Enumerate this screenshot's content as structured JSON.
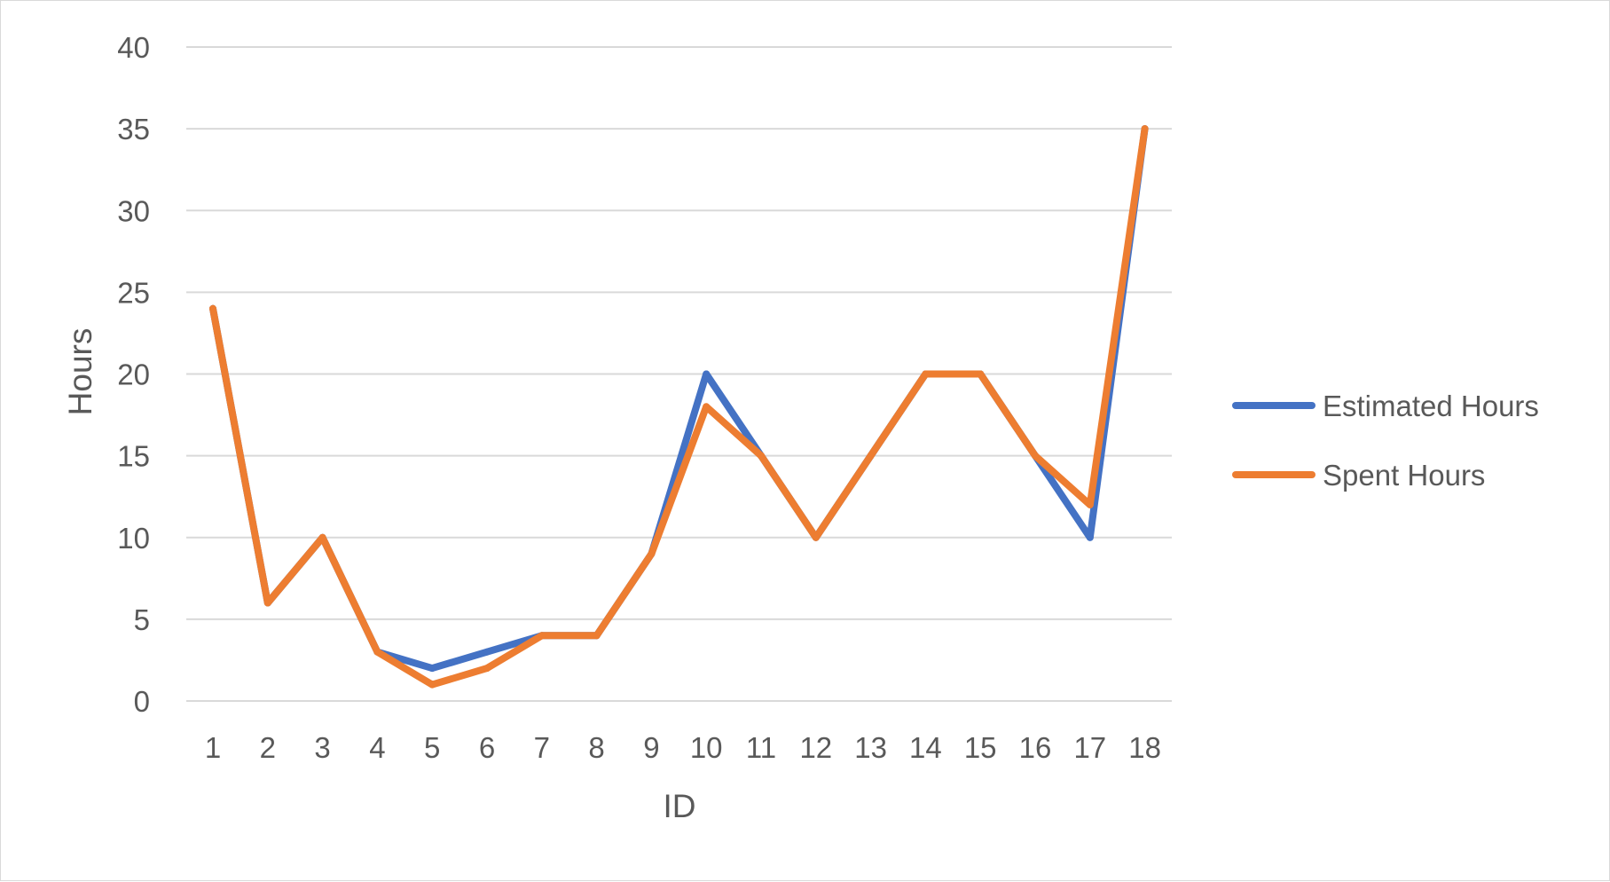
{
  "chart_data": {
    "type": "line",
    "title": "",
    "xlabel": "ID",
    "ylabel": "Hours",
    "categories": [
      "1",
      "2",
      "3",
      "4",
      "5",
      "6",
      "7",
      "8",
      "9",
      "10",
      "11",
      "12",
      "13",
      "14",
      "15",
      "16",
      "17",
      "18"
    ],
    "ylim": [
      0,
      40
    ],
    "yticks": [
      0,
      5,
      10,
      15,
      20,
      25,
      30,
      35,
      40
    ],
    "grid": true,
    "legend_position": "right",
    "series": [
      {
        "name": "Estimated Hours",
        "color": "#4472c4",
        "values": [
          24,
          6,
          10,
          3,
          2,
          3,
          4,
          4,
          9,
          20,
          15,
          10,
          15,
          20,
          20,
          15,
          10,
          35
        ]
      },
      {
        "name": "Spent Hours",
        "color": "#ed7d31",
        "values": [
          24,
          6,
          10,
          3,
          1,
          2,
          4,
          4,
          9,
          18,
          15,
          10,
          15,
          20,
          20,
          15,
          12,
          35
        ]
      }
    ]
  }
}
